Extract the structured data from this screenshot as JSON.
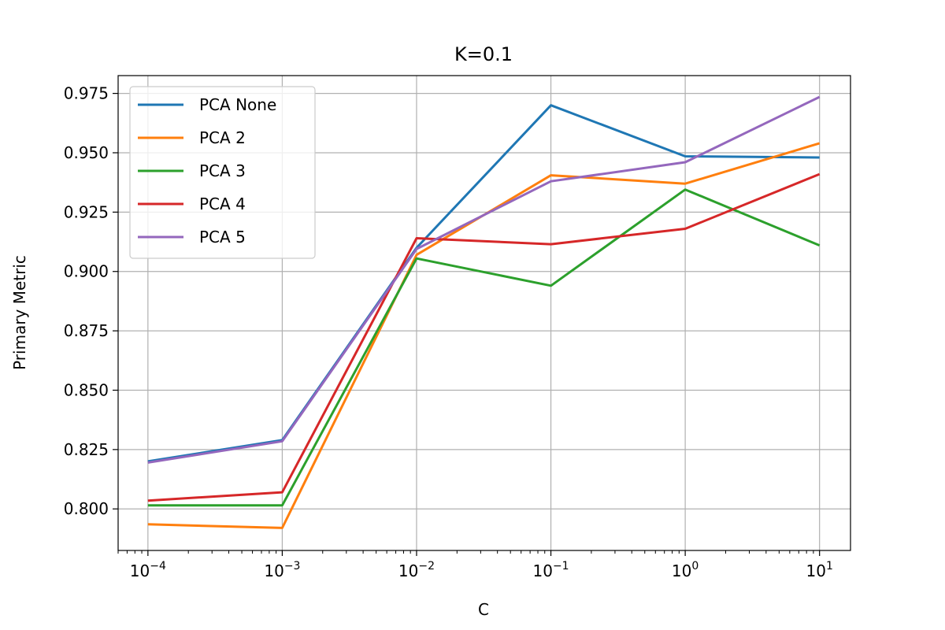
{
  "chart_data": {
    "type": "line",
    "title": "K=0.1",
    "xlabel": "C",
    "ylabel": "Primary Metric",
    "xscale": "log",
    "x": [
      0.0001,
      0.001,
      0.01,
      0.1,
      1,
      10
    ],
    "x_tick_labels": [
      {
        "base": "10",
        "exp": "−4"
      },
      {
        "base": "10",
        "exp": "−3"
      },
      {
        "base": "10",
        "exp": "−2"
      },
      {
        "base": "10",
        "exp": "−1"
      },
      {
        "base": "10",
        "exp": "0"
      },
      {
        "base": "10",
        "exp": "1"
      }
    ],
    "xlim": [
      6e-05,
      17
    ],
    "ylim": [
      0.7825,
      0.9825
    ],
    "y_ticks": [
      0.8,
      0.825,
      0.85,
      0.875,
      0.9,
      0.925,
      0.95,
      0.975
    ],
    "y_tick_labels": [
      "0.800",
      "0.825",
      "0.850",
      "0.875",
      "0.900",
      "0.925",
      "0.950",
      "0.975"
    ],
    "grid": true,
    "legend_position": "top-left",
    "series": [
      {
        "name": "PCA None",
        "color": "#1f77b4",
        "values": [
          0.82,
          0.829,
          0.91,
          0.97,
          0.9485,
          0.948
        ]
      },
      {
        "name": "PCA 2",
        "color": "#ff7f0e",
        "values": [
          0.7935,
          0.792,
          0.907,
          0.9405,
          0.937,
          0.954
        ]
      },
      {
        "name": "PCA 3",
        "color": "#2ca02c",
        "values": [
          0.8015,
          0.8015,
          0.9055,
          0.894,
          0.9345,
          0.911
        ]
      },
      {
        "name": "PCA 4",
        "color": "#d62728",
        "values": [
          0.8035,
          0.807,
          0.914,
          0.9115,
          0.918,
          0.941
        ]
      },
      {
        "name": "PCA 5",
        "color": "#9467bd",
        "values": [
          0.8195,
          0.8285,
          0.9095,
          0.938,
          0.946,
          0.9735
        ]
      }
    ]
  }
}
